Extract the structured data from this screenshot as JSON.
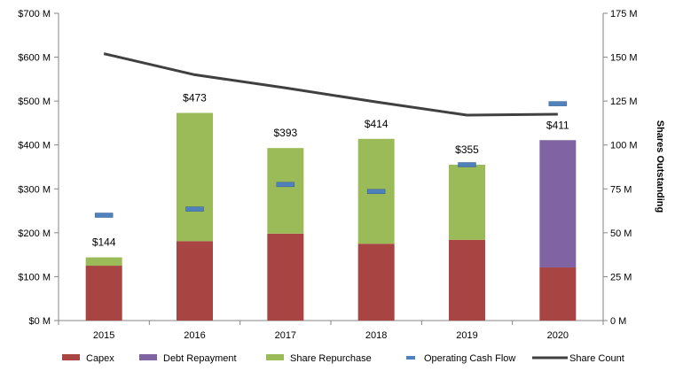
{
  "chart_data": {
    "type": "bar",
    "stacked": true,
    "categories": [
      "2015",
      "2016",
      "2017",
      "2018",
      "2019",
      "2020"
    ],
    "series": [
      {
        "name": "Capex",
        "color": "#A84442",
        "values": [
          125,
          181,
          198,
          175,
          184,
          121
        ]
      },
      {
        "name": "Debt Repayment",
        "color": "#7F63A3",
        "values": [
          0,
          0,
          0,
          0,
          0,
          290
        ]
      },
      {
        "name": "Share Repurchase",
        "color": "#9BBB59",
        "values": [
          19,
          292,
          195,
          239,
          171,
          0
        ]
      }
    ],
    "totals_labels": [
      "$144",
      "$473",
      "$393",
      "$414",
      "$355",
      "$411"
    ],
    "totals": [
      144,
      473,
      393,
      414,
      355,
      411
    ],
    "operating_cash_flow": {
      "name": "Operating Cash Flow",
      "color": "#4F81BD",
      "marker": "dash",
      "values": [
        240,
        254,
        310,
        294,
        355,
        494
      ]
    },
    "share_count": {
      "name": "Share Count",
      "color": "#404040",
      "axis": "right",
      "values": [
        152,
        140,
        132.5,
        124.5,
        117,
        117.5
      ]
    },
    "y_left": {
      "ylim": [
        0,
        700
      ],
      "ticks": [
        "$0 M",
        "$100 M",
        "$200 M",
        "$300 M",
        "$400 M",
        "$500 M",
        "$600 M",
        "$700 M"
      ]
    },
    "y_right": {
      "ylim": [
        0,
        175
      ],
      "label": "Shares Outstanding",
      "ticks": [
        "0 M",
        "25 M",
        "50 M",
        "75 M",
        "100 M",
        "125 M",
        "150 M",
        "175 M"
      ]
    },
    "legend": {
      "position": "bottom",
      "items": [
        "Capex",
        "Debt Repayment",
        "Share Repurchase",
        "Operating Cash Flow",
        "Share Count"
      ]
    },
    "grid": false
  }
}
